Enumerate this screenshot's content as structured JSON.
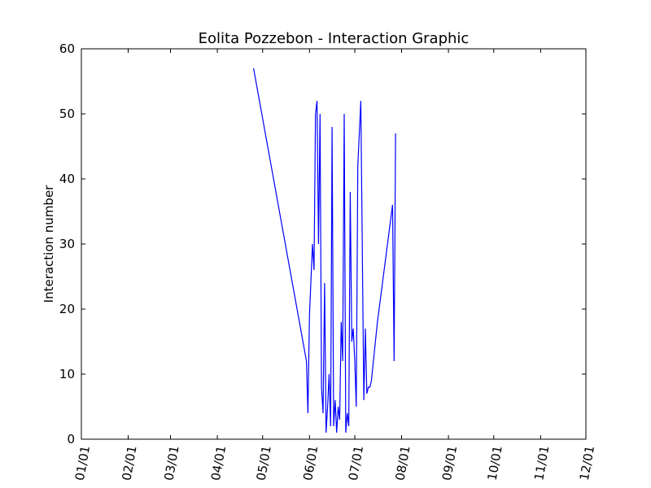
{
  "chart_data": {
    "type": "line",
    "title": "Eolita Pozzebon - Interaction Graphic",
    "xlabel": "",
    "ylabel": "Interaction number",
    "ylim": [
      0,
      60
    ],
    "yticks": [
      0,
      10,
      20,
      30,
      40,
      50,
      60
    ],
    "xlim": [
      "2021-01-01",
      "2021-12-01"
    ],
    "xtick_labels": [
      "01/01",
      "02/01",
      "03/01",
      "04/01",
      "05/01",
      "06/01",
      "07/01",
      "08/01",
      "09/01",
      "10/01",
      "11/01",
      "12/01"
    ],
    "grid": false,
    "legend": "none",
    "line_color": "#0000ff",
    "series": [
      {
        "x": [
          "2021-04-25",
          "2021-05-30",
          "2021-05-31",
          "2021-06-01",
          "2021-06-03",
          "2021-06-04",
          "2021-06-05",
          "2021-06-06",
          "2021-06-07",
          "2021-06-08",
          "2021-06-09",
          "2021-06-10",
          "2021-06-11",
          "2021-06-12",
          "2021-06-13",
          "2021-06-14",
          "2021-06-15",
          "2021-06-16",
          "2021-06-17",
          "2021-06-18",
          "2021-06-19",
          "2021-06-20",
          "2021-06-21",
          "2021-06-22",
          "2021-06-23",
          "2021-06-24",
          "2021-06-25",
          "2021-06-26",
          "2021-06-27",
          "2021-06-28",
          "2021-06-29",
          "2021-06-30",
          "2021-07-01",
          "2021-07-02",
          "2021-07-03",
          "2021-07-05",
          "2021-07-07",
          "2021-07-08",
          "2021-07-09",
          "2021-07-10",
          "2021-07-11",
          "2021-07-12",
          "2021-07-16",
          "2021-07-26",
          "2021-07-27",
          "2021-07-28"
        ],
        "values": [
          57,
          12,
          4,
          19,
          30,
          26,
          50,
          52,
          30,
          50,
          8,
          4,
          24,
          1,
          5,
          10,
          2,
          48,
          2,
          6,
          1,
          5,
          3,
          18,
          12,
          50,
          1,
          4,
          2,
          38,
          15,
          17,
          12,
          5,
          42,
          52,
          6,
          17,
          7,
          8,
          8,
          9,
          18,
          36,
          12,
          47
        ]
      }
    ]
  }
}
